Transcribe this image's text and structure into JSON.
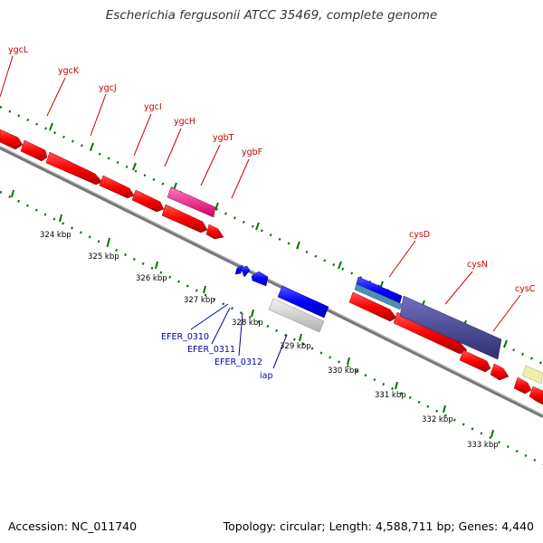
{
  "title": "Escherichia fergusonii ATCC 35469, complete genome",
  "footer": {
    "accession": "Accession: NC_011740",
    "stats": "Topology: circular; Length: 4,588,711 bp; Genes: 4,440"
  },
  "colors": {
    "forward_gene": "#ff0000",
    "forward_gene_dark": "#b30000",
    "reverse_gene": "#0000ff",
    "pink_gene": "#ff3399",
    "cys_purple": "#4b4b9e",
    "cys_teal": "#4f8fb0",
    "grey_gene": "#d9d9d9",
    "yellow_gene": "#eeeeaa",
    "tick_green": "#007700",
    "backbone": "#8a8a8a",
    "top_label": "#cc0000",
    "bottom_label": "#0000aa"
  },
  "top_gene_labels": [
    "ygcL",
    "ygcK",
    "ygcJ",
    "ygcI",
    "ygcH",
    "ygbT",
    "ygbF",
    "cysD",
    "cysN",
    "cysC"
  ],
  "bottom_gene_labels": [
    "EFER_0310",
    "EFER_0311",
    "EFER_0312",
    "iap"
  ],
  "kbp_labels": [
    "324 kbp",
    "325 kbp",
    "326 kbp",
    "327 kbp",
    "328 kbp",
    "329 kbp",
    "330 kbp",
    "331 kbp",
    "332 kbp",
    "333 kbp"
  ]
}
